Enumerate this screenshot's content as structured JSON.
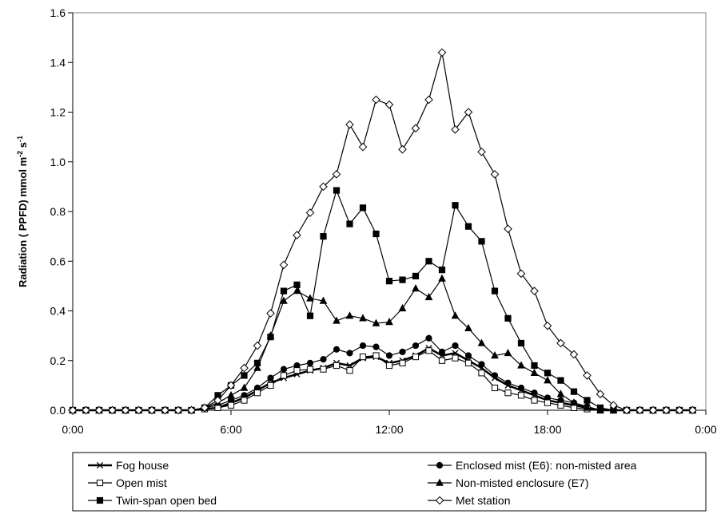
{
  "chart_data": {
    "type": "line",
    "xlabel": "",
    "ylabel": "Radiation ( PPFD) mmol m-2 s-1",
    "ylabel_parts": {
      "main": "Radiation ( PPFD) mmol m",
      "sup1": "-2",
      "mid": " s",
      "sup2": "-1"
    },
    "ylim": [
      0,
      1.6
    ],
    "y_ticks": [
      "0.0",
      "0.2",
      "0.4",
      "0.6",
      "0.8",
      "1.0",
      "1.2",
      "1.4",
      "1.6"
    ],
    "xlim": [
      0,
      24
    ],
    "x_ticks": [
      "0:00",
      "6:00",
      "12:00",
      "18:00",
      "0:00"
    ],
    "grid": false,
    "legend_position": "bottom",
    "x": [
      0,
      0.5,
      1,
      1.5,
      2,
      2.5,
      3,
      3.5,
      4,
      4.5,
      5,
      5.5,
      6,
      6.5,
      7,
      7.5,
      8,
      8.5,
      9,
      9.5,
      10,
      10.5,
      11,
      11.5,
      12,
      12.5,
      13,
      13.5,
      14,
      14.5,
      15,
      15.5,
      16,
      16.5,
      17,
      17.5,
      18,
      18.5,
      19,
      19.5,
      20,
      20.5,
      21,
      21.5,
      22,
      22.5,
      23,
      23.5
    ],
    "series": [
      {
        "name": "Fog house",
        "marker": "x",
        "line_width": 2.5,
        "fill": "none",
        "values": [
          0,
          0,
          0,
          0,
          0,
          0,
          0,
          0,
          0,
          0,
          0.005,
          0.01,
          0.03,
          0.05,
          0.08,
          0.11,
          0.13,
          0.145,
          0.16,
          0.17,
          0.19,
          0.18,
          0.21,
          0.215,
          0.19,
          0.2,
          0.22,
          0.25,
          0.22,
          0.23,
          0.2,
          0.17,
          0.13,
          0.1,
          0.08,
          0.06,
          0.04,
          0.03,
          0.02,
          0.01,
          0,
          0,
          0,
          0,
          0,
          0,
          0,
          0
        ]
      },
      {
        "name": "Enclosed mist (E6): non-misted area",
        "marker": "circle",
        "line_width": 1.2,
        "fill": "#000",
        "values": [
          0,
          0,
          0,
          0,
          0,
          0,
          0,
          0,
          0,
          0,
          0.01,
          0.02,
          0.04,
          0.06,
          0.09,
          0.13,
          0.165,
          0.18,
          0.19,
          0.205,
          0.245,
          0.23,
          0.26,
          0.255,
          0.22,
          0.235,
          0.26,
          0.29,
          0.235,
          0.26,
          0.22,
          0.185,
          0.14,
          0.11,
          0.09,
          0.07,
          0.05,
          0.04,
          0.03,
          0.015,
          0,
          0,
          0,
          0,
          0,
          0,
          0,
          0
        ]
      },
      {
        "name": "Open mist",
        "marker": "square",
        "line_width": 1.2,
        "fill": "#fff",
        "values": [
          0,
          0,
          0,
          0,
          0,
          0,
          0,
          0,
          0,
          0,
          0.005,
          0.01,
          0.02,
          0.04,
          0.07,
          0.1,
          0.14,
          0.16,
          0.165,
          0.165,
          0.18,
          0.16,
          0.215,
          0.22,
          0.18,
          0.19,
          0.215,
          0.24,
          0.2,
          0.21,
          0.19,
          0.15,
          0.09,
          0.07,
          0.06,
          0.04,
          0.03,
          0.02,
          0.01,
          0.005,
          0,
          0,
          0,
          0,
          0,
          0,
          0,
          0
        ]
      },
      {
        "name": "Non-misted enclosure (E7)",
        "marker": "triangle",
        "line_width": 1.2,
        "fill": "#000",
        "values": [
          0,
          0,
          0,
          0,
          0,
          0,
          0,
          0,
          0,
          0,
          0.01,
          0.03,
          0.06,
          0.09,
          0.17,
          0.3,
          0.44,
          0.48,
          0.45,
          0.44,
          0.36,
          0.38,
          0.37,
          0.35,
          0.355,
          0.41,
          0.49,
          0.455,
          0.53,
          0.38,
          0.33,
          0.27,
          0.22,
          0.23,
          0.18,
          0.15,
          0.12,
          0.065,
          0.03,
          0.01,
          0,
          0,
          0,
          0,
          0,
          0,
          0,
          0
        ]
      },
      {
        "name": "Twin-span open bed",
        "marker": "square",
        "line_width": 1.2,
        "fill": "#000",
        "values": [
          0,
          0,
          0,
          0,
          0,
          0,
          0,
          0,
          0,
          0,
          0.01,
          0.06,
          0.1,
          0.14,
          0.19,
          0.295,
          0.48,
          0.505,
          0.38,
          0.7,
          0.885,
          0.75,
          0.815,
          0.71,
          0.52,
          0.525,
          0.54,
          0.6,
          0.565,
          0.825,
          0.74,
          0.68,
          0.48,
          0.37,
          0.27,
          0.18,
          0.15,
          0.12,
          0.075,
          0.04,
          0.01,
          0,
          0,
          0,
          0,
          0,
          0,
          0
        ]
      },
      {
        "name": "Met station",
        "marker": "diamond",
        "line_width": 1.2,
        "fill": "#fff",
        "values": [
          0,
          0,
          0,
          0,
          0,
          0,
          0,
          0,
          0,
          0,
          0.01,
          0.04,
          0.1,
          0.17,
          0.26,
          0.39,
          0.585,
          0.705,
          0.795,
          0.9,
          0.95,
          1.15,
          1.06,
          1.25,
          1.23,
          1.05,
          1.135,
          1.25,
          1.44,
          1.13,
          1.2,
          1.04,
          0.95,
          0.73,
          0.55,
          0.48,
          0.34,
          0.27,
          0.225,
          0.14,
          0.065,
          0.02,
          0,
          0,
          0,
          0,
          0,
          0
        ]
      }
    ]
  }
}
